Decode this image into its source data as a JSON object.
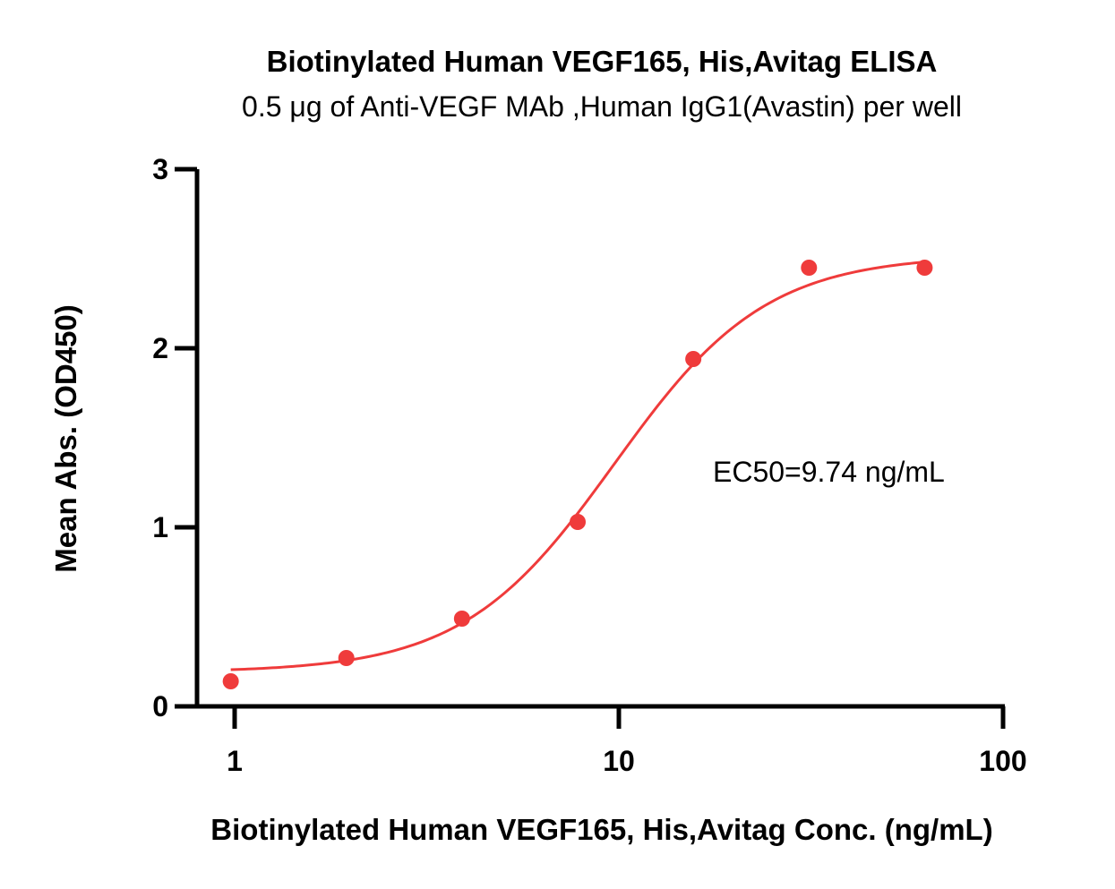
{
  "chart_data": {
    "type": "scatter",
    "title": "Biotinylated Human VEGF165, His,Avitag ELISA",
    "subtitle": "0.5 μg of Anti-VEGF MAb ,Human IgG1(Avastin) per well",
    "xlabel": "Biotinylated Human VEGF165, His,Avitag Conc. (ng/mL)",
    "ylabel": "Mean Abs. (OD450)",
    "x_scale": "log",
    "xlim": [
      1,
      100
    ],
    "ylim": [
      0,
      3
    ],
    "x_ticks": [
      1,
      10,
      100
    ],
    "x_tick_labels": [
      "1",
      "10",
      "100"
    ],
    "y_ticks": [
      0,
      1,
      2,
      3
    ],
    "y_tick_labels": [
      "0",
      "1",
      "2",
      "3"
    ],
    "grid": false,
    "legend": "none",
    "annotation": "EC50=9.74 ng/mL",
    "color": "#ef3b3b",
    "points": {
      "x": [
        0.977,
        1.953,
        3.906,
        7.813,
        15.625,
        31.25,
        62.5
      ],
      "y": [
        0.14,
        0.27,
        0.49,
        1.03,
        1.94,
        2.45,
        2.45
      ]
    },
    "fit": {
      "model": "4PL",
      "bottom": 0.19,
      "top": 2.52,
      "ec50": 9.74,
      "hill": 2.2,
      "x_range": [
        0.977,
        62.5
      ]
    }
  }
}
